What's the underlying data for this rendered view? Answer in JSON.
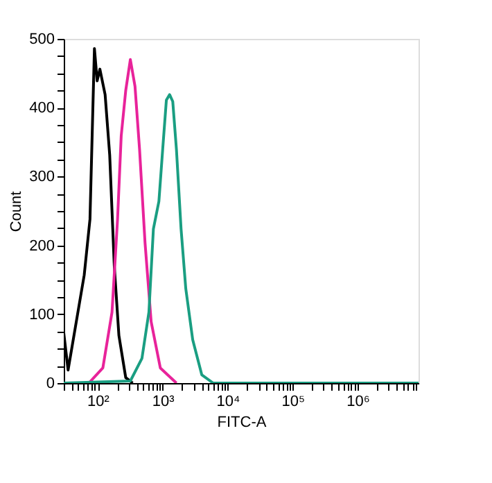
{
  "chart_data": {
    "type": "line",
    "xlabel": "FITC-A",
    "ylabel": "Count",
    "log": "x",
    "grid": false,
    "line_style": "solid",
    "marker": "none",
    "xlim": [
      30,
      8700000
    ],
    "ylim": [
      0,
      500
    ],
    "xticks": [
      {
        "value": 30,
        "label": null
      },
      {
        "value": 40,
        "label": null
      },
      {
        "value": 50,
        "label": null
      },
      {
        "value": 60,
        "label": null
      },
      {
        "value": 70,
        "label": null
      },
      {
        "value": 80,
        "label": null
      },
      {
        "value": 90,
        "label": null
      },
      {
        "value": 100,
        "label": "10²"
      },
      {
        "value": 200,
        "label": null
      },
      {
        "value": 300,
        "label": null
      },
      {
        "value": 400,
        "label": null
      },
      {
        "value": 500,
        "label": null
      },
      {
        "value": 600,
        "label": null
      },
      {
        "value": 700,
        "label": null
      },
      {
        "value": 800,
        "label": null
      },
      {
        "value": 900,
        "label": null
      },
      {
        "value": 1000,
        "label": "10³"
      },
      {
        "value": 2000,
        "label": null
      },
      {
        "value": 3000,
        "label": null
      },
      {
        "value": 4000,
        "label": null
      },
      {
        "value": 5000,
        "label": null
      },
      {
        "value": 6000,
        "label": null
      },
      {
        "value": 7000,
        "label": null
      },
      {
        "value": 8000,
        "label": null
      },
      {
        "value": 9000,
        "label": null
      },
      {
        "value": 10000,
        "label": "10⁴"
      },
      {
        "value": 20000,
        "label": null
      },
      {
        "value": 30000,
        "label": null
      },
      {
        "value": 40000,
        "label": null
      },
      {
        "value": 50000,
        "label": null
      },
      {
        "value": 60000,
        "label": null
      },
      {
        "value": 70000,
        "label": null
      },
      {
        "value": 80000,
        "label": null
      },
      {
        "value": 90000,
        "label": null
      },
      {
        "value": 100000,
        "label": "10⁵"
      },
      {
        "value": 200000,
        "label": null
      },
      {
        "value": 300000,
        "label": null
      },
      {
        "value": 400000,
        "label": null
      },
      {
        "value": 500000,
        "label": null
      },
      {
        "value": 600000,
        "label": null
      },
      {
        "value": 700000,
        "label": null
      },
      {
        "value": 800000,
        "label": null
      },
      {
        "value": 900000,
        "label": null
      },
      {
        "value": 1000000,
        "label": "10⁶"
      },
      {
        "value": 2000000,
        "label": null
      },
      {
        "value": 3000000,
        "label": null
      },
      {
        "value": 4000000,
        "label": null
      },
      {
        "value": 5000000,
        "label": null
      },
      {
        "value": 6000000,
        "label": null
      },
      {
        "value": 7000000,
        "label": null
      },
      {
        "value": 8000000,
        "label": null
      }
    ],
    "yticks": [
      0,
      {
        "value": 25,
        "label": null
      },
      {
        "value": 50,
        "label": null
      },
      {
        "value": 75,
        "label": null
      },
      100,
      {
        "value": 125,
        "label": null
      },
      {
        "value": 150,
        "label": null
      },
      {
        "value": 175,
        "label": null
      },
      200,
      {
        "value": 225,
        "label": null
      },
      {
        "value": 250,
        "label": null
      },
      {
        "value": 275,
        "label": null
      },
      300,
      {
        "value": 325,
        "label": null
      },
      {
        "value": 350,
        "label": null
      },
      {
        "value": 375,
        "label": null
      },
      400,
      {
        "value": 425,
        "label": null
      },
      {
        "value": 450,
        "label": null
      },
      {
        "value": 475,
        "label": null
      },
      500
    ],
    "series": [
      {
        "color": "#000000",
        "x": [
          30,
          35,
          62,
          76,
          89,
          98,
          108,
          130,
          153,
          180,
          212,
          270,
          345
        ],
        "values": [
          73,
          19,
          157,
          238,
          486,
          439,
          456,
          419,
          331,
          170,
          69,
          8,
          0
        ]
      },
      {
        "color": "#e8239a",
        "x": [
          73,
          120,
          166,
          202,
          230,
          270,
          318,
          375,
          441,
          535,
          665,
          920,
          1630
        ],
        "values": [
          0,
          22,
          103,
          238,
          359,
          425,
          470,
          431,
          339,
          204,
          89,
          22,
          0
        ]
      },
      {
        "color": "#1a9e82",
        "x": [
          30,
          318,
          480,
          614,
          720,
          875,
          1000,
          1140,
          1280,
          1430,
          1630,
          1920,
          2270,
          2900,
          4000,
          6000,
          8700000
        ],
        "values": [
          0,
          3,
          36,
          103,
          224,
          264,
          339,
          411,
          419,
          409,
          339,
          224,
          137,
          63,
          12,
          0,
          0
        ]
      }
    ]
  }
}
